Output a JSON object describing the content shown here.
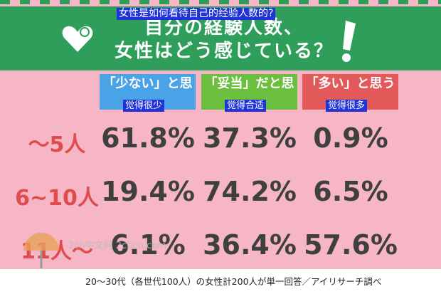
{
  "overlay_title": "女性是如何看待自己的经验人数的?",
  "banner": {
    "line1": "自分の経験人数、",
    "line2": "女性はどう感じている？",
    "colors": {
      "green": "#2f9e5a",
      "pink": "#f6b6c6"
    }
  },
  "footer": "20～30代（各世代100人）の女性計200人が単一回答／アイリサーチ調べ",
  "watermark": "2ch中文网 2chcn.com",
  "chart_data": {
    "type": "table",
    "columns": [
      {
        "label": "「少ない」と思う",
        "overlay": "觉得很少",
        "color": "#4aa3e6"
      },
      {
        "label": "「妥当」だと思う",
        "overlay": "觉得合适",
        "color": "#6bbf3f"
      },
      {
        "label": "「多い」と思う",
        "overlay": "觉得很多",
        "color": "#e35a5a"
      }
    ],
    "rows": [
      {
        "label": "～5人",
        "values": [
          "61.8%",
          "37.3%",
          "0.9%"
        ]
      },
      {
        "label": "6~10人",
        "values": [
          "19.4%",
          "74.2%",
          "6.5%"
        ]
      },
      {
        "label": "11人～",
        "values": [
          "6.1%",
          "36.4%",
          "57.6%"
        ]
      }
    ]
  }
}
